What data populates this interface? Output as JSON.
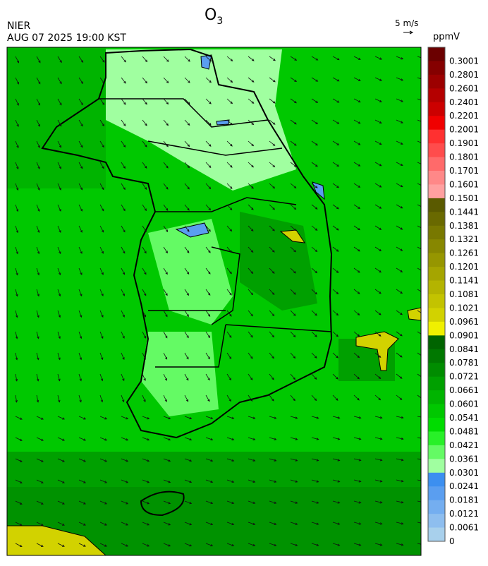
{
  "header": {
    "title": "O",
    "title_subscript": "3",
    "agency": "NIER",
    "timestamp": "AUG 07 2025 19:00 KST",
    "wind_scale": "5 m/s",
    "unit": "ppmV"
  },
  "colorbar": [
    {
      "label": "0.3001",
      "color": "#6b0000"
    },
    {
      "label": "0.2801",
      "color": "#850000"
    },
    {
      "label": "0.2601",
      "color": "#9c0000"
    },
    {
      "label": "0.2401",
      "color": "#b40000"
    },
    {
      "label": "0.2201",
      "color": "#cc0000"
    },
    {
      "label": "0.2001",
      "color": "#f00000"
    },
    {
      "label": "0.1901",
      "color": "#ff3030"
    },
    {
      "label": "0.1801",
      "color": "#ff4c4c"
    },
    {
      "label": "0.1701",
      "color": "#ff6a6a"
    },
    {
      "label": "0.1601",
      "color": "#ff8888"
    },
    {
      "label": "0.1501",
      "color": "#ffa0a0"
    },
    {
      "label": "0.1441",
      "color": "#5a5a00"
    },
    {
      "label": "0.1381",
      "color": "#696900"
    },
    {
      "label": "0.1321",
      "color": "#787800"
    },
    {
      "label": "0.1261",
      "color": "#878700"
    },
    {
      "label": "0.1201",
      "color": "#969600"
    },
    {
      "label": "0.1141",
      "color": "#a5a500"
    },
    {
      "label": "0.1081",
      "color": "#b4b400"
    },
    {
      "label": "0.1021",
      "color": "#c3c300"
    },
    {
      "label": "0.0961",
      "color": "#d2d200"
    },
    {
      "label": "0.0901",
      "color": "#f0f000"
    },
    {
      "label": "0.0841",
      "color": "#006400"
    },
    {
      "label": "0.0781",
      "color": "#007800"
    },
    {
      "label": "0.0721",
      "color": "#008c00"
    },
    {
      "label": "0.0661",
      "color": "#00a000"
    },
    {
      "label": "0.0601",
      "color": "#00b400"
    },
    {
      "label": "0.0541",
      "color": "#00c800"
    },
    {
      "label": "0.0481",
      "color": "#00dc00"
    },
    {
      "label": "0.0421",
      "color": "#28f028"
    },
    {
      "label": "0.0361",
      "color": "#64fa64"
    },
    {
      "label": "0.0301",
      "color": "#a0ffa0"
    },
    {
      "label": "0.0241",
      "color": "#3c8ff0"
    },
    {
      "label": "0.0181",
      "color": "#5a9ef0"
    },
    {
      "label": "0.0121",
      "color": "#74aef0"
    },
    {
      "label": "0.0061",
      "color": "#8ebeef"
    },
    {
      "label": "0",
      "color": "#a8d0ec"
    }
  ]
}
